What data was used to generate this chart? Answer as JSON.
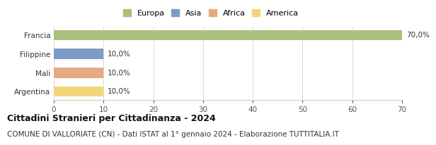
{
  "categories": [
    "Argentina",
    "Mali",
    "Filippine",
    "Francia"
  ],
  "values": [
    10.0,
    10.0,
    10.0,
    70.0
  ],
  "bar_colors": [
    "#f5d57a",
    "#e5aa80",
    "#7a9cc7",
    "#a8c07a"
  ],
  "labels": [
    "10,0%",
    "10,0%",
    "10,0%",
    "70,0%"
  ],
  "legend_labels": [
    "Europa",
    "Asia",
    "Africa",
    "America"
  ],
  "legend_colors": [
    "#a8c07a",
    "#7a9cc7",
    "#e5aa80",
    "#f5d57a"
  ],
  "xlim": [
    0,
    70
  ],
  "xticks": [
    0,
    10,
    20,
    30,
    40,
    50,
    60,
    70
  ],
  "title": "Cittadini Stranieri per Cittadinanza - 2024",
  "subtitle": "COMUNE DI VALLORIATE (CN) - Dati ISTAT al 1° gennaio 2024 - Elaborazione TUTTITALIA.IT",
  "title_fontsize": 9,
  "subtitle_fontsize": 7.5,
  "label_fontsize": 7.5,
  "tick_fontsize": 7.5,
  "ytick_fontsize": 7.5,
  "legend_fontsize": 8,
  "background_color": "#ffffff"
}
